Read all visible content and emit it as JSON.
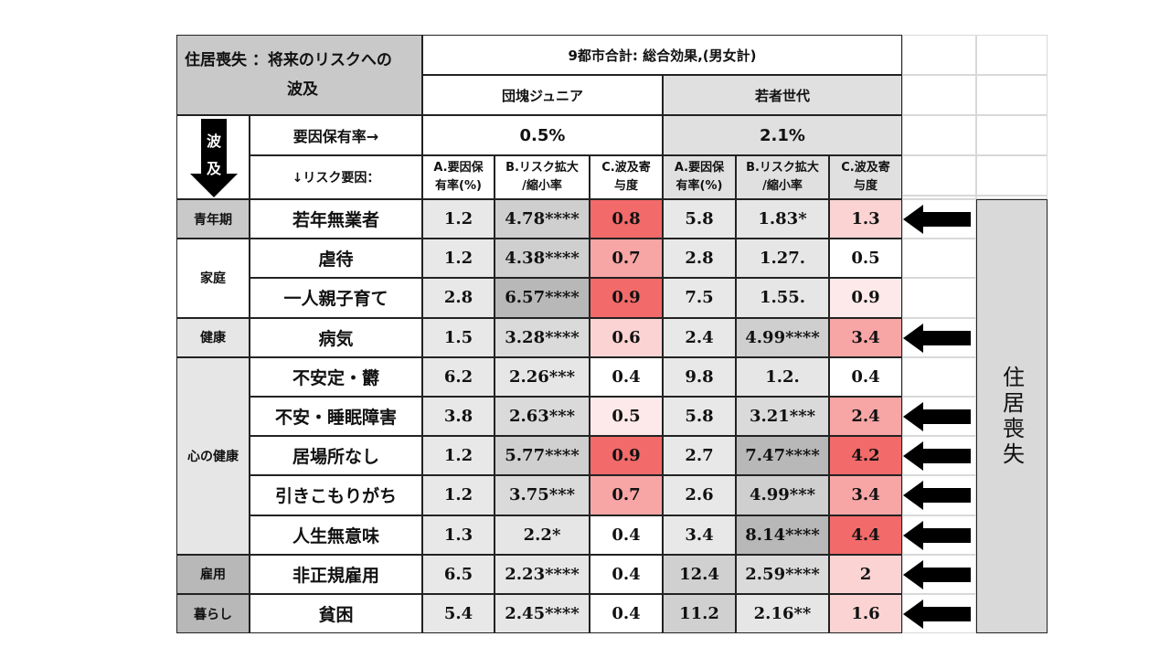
{
  "title_line1": "住居喪失 ：将来のリスクへの",
  "title_line2": "波及",
  "overall_header": "9都市合計: 総合効果,(男女計)",
  "group1": "団塊ジュニア",
  "group2": "若者世代",
  "hold_rate_label": "要因保有率→",
  "factor_label": "↓リスク要因：",
  "hold_rate_g1": "0.5%",
  "hold_rate_g2": "2.1%",
  "wave_char1": "波",
  "wave_char2": "及",
  "colA": [
    "A.要因保",
    "有率(%)"
  ],
  "colB": [
    "B.リスク拡大",
    "/縮小率"
  ],
  "colC": [
    "C.波及寄",
    "与度"
  ],
  "categories": [
    "青年期",
    "家庭",
    "健康",
    "心の健康",
    "雇用",
    "暮らし"
  ],
  "rows": [
    {
      "factor": "若年無業者",
      "a1": "1.2",
      "b1": "4.78****",
      "c1": "0.8",
      "a2": "5.8",
      "b2": "1.83*",
      "c2": "1.3"
    },
    {
      "factor": "虐待",
      "a1": "1.2",
      "b1": "4.38****",
      "c1": "0.7",
      "a2": "2.8",
      "b2": "1.27.",
      "c2": "0.5"
    },
    {
      "factor": "一人親子育て",
      "a1": "2.8",
      "b1": "6.57****",
      "c1": "0.9",
      "a2": "7.5",
      "b2": "1.55.",
      "c2": "0.9"
    },
    {
      "factor": "病気",
      "a1": "1.5",
      "b1": "3.28****",
      "c1": "0.6",
      "a2": "2.4",
      "b2": "4.99****",
      "c2": "3.4"
    },
    {
      "factor": "不安定・欝",
      "a1": "6.2",
      "b1": "2.26***",
      "c1": "0.4",
      "a2": "9.8",
      "b2": "1.2.",
      "c2": "0.4"
    },
    {
      "factor": "不安・睡眠障害",
      "a1": "3.8",
      "b1": "2.63***",
      "c1": "0.5",
      "a2": "5.8",
      "b2": "3.21***",
      "c2": "2.4"
    },
    {
      "factor": "居場所なし",
      "a1": "1.2",
      "b1": "5.77****",
      "c1": "0.9",
      "a2": "2.7",
      "b2": "7.47****",
      "c2": "4.2"
    },
    {
      "factor": "引きこもりがち",
      "a1": "1.2",
      "b1": "3.75***",
      "c1": "0.7",
      "a2": "2.6",
      "b2": "4.99***",
      "c2": "3.4"
    },
    {
      "factor": "人生無意味",
      "a1": "1.3",
      "b1": "2.2*",
      "c1": "0.4",
      "a2": "3.4",
      "b2": "8.14****",
      "c2": "4.4"
    },
    {
      "factor": "非正規雇用",
      "a1": "6.5",
      "b1": "2.23****",
      "c1": "0.4",
      "a2": "12.4",
      "b2": "2.59****",
      "c2": "2"
    },
    {
      "factor": "貧困",
      "a1": "5.4",
      "b1": "2.45****",
      "c1": "0.4",
      "a2": "11.2",
      "b2": "2.16**",
      "c2": "1.6"
    }
  ],
  "side_label": "住居喪失",
  "colors": {
    "header_gray": "#c9c9c9",
    "light_gray": "#e6e6e6",
    "mid_gray": "#cfcfcf",
    "dark_gray": "#b8b8b8",
    "red_strong": "#f26a6a",
    "red_mid": "#f7a5a5",
    "red_light": "#fbd3d3",
    "red_faint": "#fde9e9"
  }
}
